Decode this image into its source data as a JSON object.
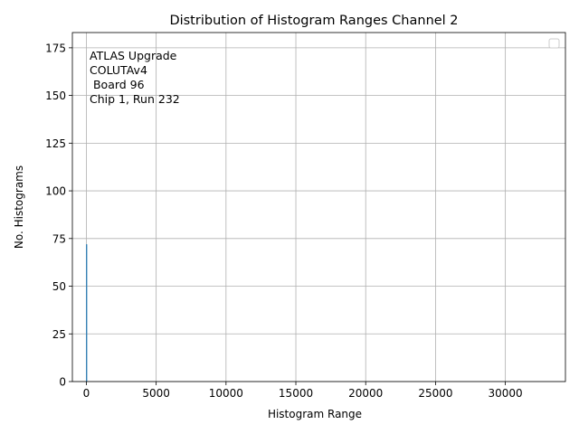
{
  "chart_data": {
    "type": "bar",
    "title": "Distribution of Histogram Ranges Channel 2",
    "xlabel": "Histogram Range",
    "ylabel": "No. Histograms",
    "xlim": [
      -1000,
      34300
    ],
    "ylim": [
      0,
      183
    ],
    "xticks": [
      0,
      5000,
      10000,
      15000,
      20000,
      25000,
      30000
    ],
    "yticks": [
      0,
      25,
      50,
      75,
      100,
      125,
      150,
      175
    ],
    "grid": true,
    "legend": "top-right",
    "annotation": [
      "ATLAS Upgrade",
      "COLUTAv4",
      " Board 96",
      "Chip 1, Run 232"
    ],
    "bars": [
      {
        "x": 15,
        "value": 72
      }
    ],
    "bar_color": "#1f77b4"
  }
}
